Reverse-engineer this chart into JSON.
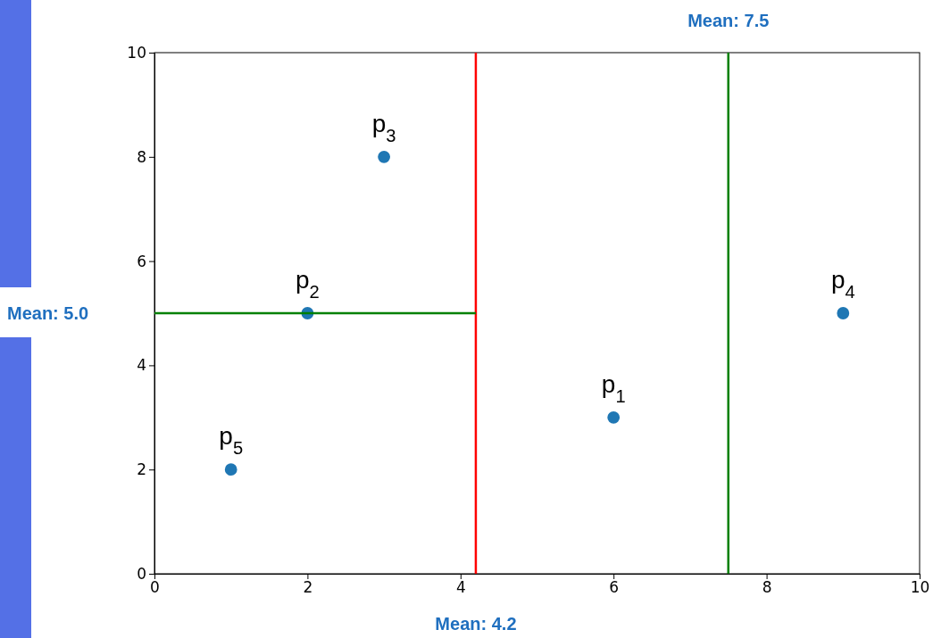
{
  "chart_data": {
    "type": "scatter",
    "grid": false,
    "xlim": [
      0,
      10
    ],
    "ylim": [
      0,
      10
    ],
    "xticks": [
      0,
      2,
      4,
      6,
      8,
      10
    ],
    "yticks": [
      0,
      2,
      4,
      6,
      8,
      10
    ],
    "series": [
      {
        "marker": "circle",
        "color": "#1f77b4",
        "x": [
          6,
          2,
          3,
          9,
          1
        ],
        "values": [
          3,
          5,
          8,
          5,
          2
        ]
      },
      {
        "type": "line",
        "color": "#008000",
        "x": [
          0,
          4.2
        ],
        "values": [
          5,
          5
        ]
      }
    ],
    "ref_lines": [
      {
        "axis": "x",
        "value": 4.2,
        "label": "Mean: 4.2",
        "color": "#ff0000"
      },
      {
        "axis": "x",
        "value": 7.5,
        "label": "Mean: 7.5",
        "color": "#008000"
      }
    ],
    "annotations": [
      "Mean: 5.0",
      {
        "text": "p$_{1}$",
        "x": 6,
        "y": 3
      },
      {
        "text": "p$_{2}$",
        "x": 2,
        "y": 5
      },
      {
        "text": "p$_{3}$",
        "x": 3,
        "y": 8
      },
      {
        "text": "p$_{4}$",
        "x": 9,
        "y": 5
      },
      {
        "text": "p$_{5}$",
        "x": 1,
        "y": 2
      }
    ]
  }
}
